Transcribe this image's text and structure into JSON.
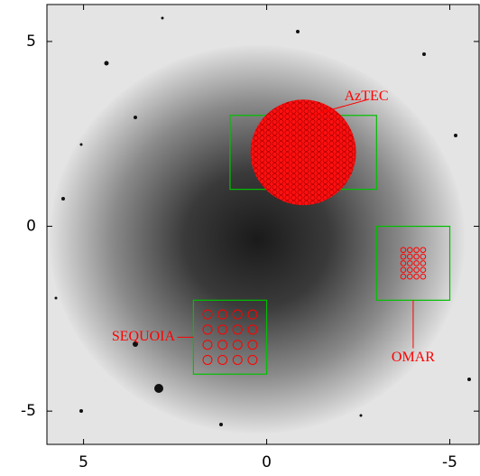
{
  "chart_data": {
    "type": "image",
    "xlim": [
      6,
      -5.8
    ],
    "ylim": [
      -5.9,
      6
    ],
    "xticks": [
      5,
      0,
      -5
    ],
    "yticks": [
      5,
      0,
      -5
    ],
    "box_color": "#00c000",
    "label_color": "#ff0000",
    "regions": [
      {
        "name": "AzTEC",
        "xlim": [
          1,
          -3
        ],
        "ylim": [
          1,
          3
        ]
      },
      {
        "name": "OMAR",
        "xlim": [
          -3,
          -5
        ],
        "ylim": [
          -2,
          0
        ]
      },
      {
        "name": "SEQUOIA",
        "xlim": [
          2,
          0
        ],
        "ylim": [
          -4,
          -2
        ]
      }
    ]
  }
}
